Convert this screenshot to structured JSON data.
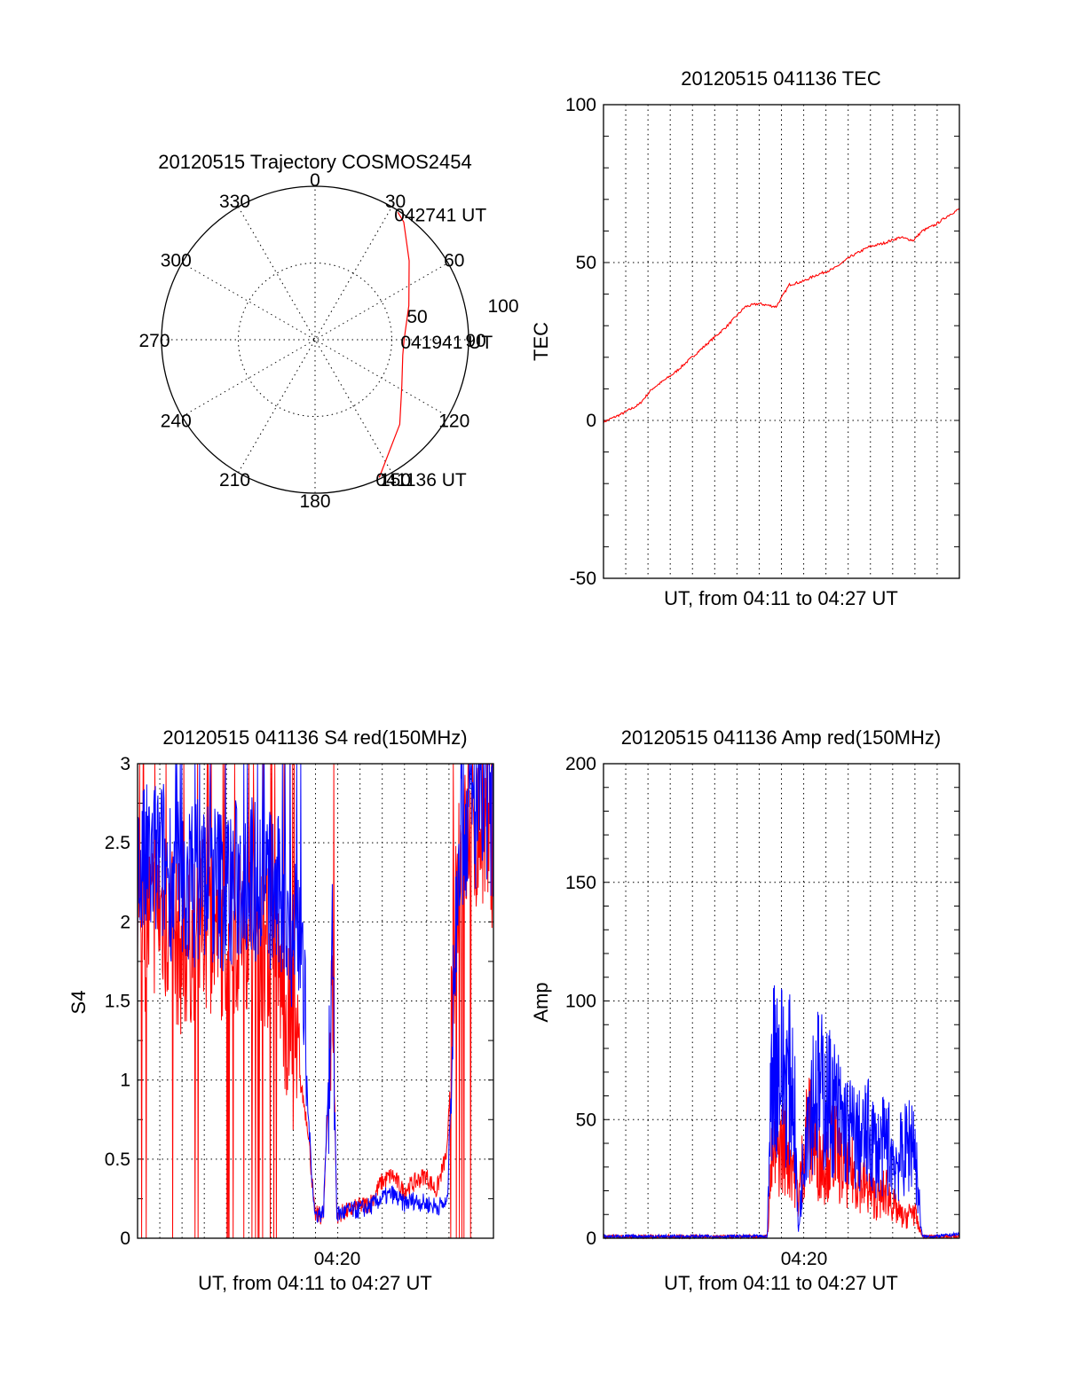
{
  "chart_data": [
    {
      "type": "polar",
      "title": "20120515 Trajectory COSMOS2454",
      "angle_labels": [
        "0",
        "30",
        "60",
        "90",
        "120",
        "150",
        "180",
        "210",
        "240",
        "270",
        "300",
        "330"
      ],
      "radius_labels": [
        "50",
        "100"
      ],
      "rlim": [
        0,
        100
      ],
      "grid": true,
      "series": [
        {
          "color": "#ff0000",
          "points": [
            {
              "az": 155,
              "r": 99
            },
            {
              "az": 135,
              "r": 78
            },
            {
              "az": 118,
              "r": 64
            },
            {
              "az": 100,
              "r": 58
            },
            {
              "az": 90,
              "r": 58
            },
            {
              "az": 70,
              "r": 65
            },
            {
              "az": 50,
              "r": 80
            },
            {
              "az": 37,
              "r": 96
            },
            {
              "az": 33,
              "r": 99
            }
          ]
        }
      ],
      "annotations": [
        {
          "text": "041136 UT",
          "az": 155,
          "r": 99
        },
        {
          "text": "041941 UT",
          "az": 90,
          "r": 58
        },
        {
          "text": "042741 UT",
          "az": 33,
          "r": 99
        }
      ]
    },
    {
      "type": "line",
      "title": "20120515 041136 TEC",
      "xlabel": "UT, from 04:11 to 04:27 UT",
      "ylabel": "TEC",
      "xlim": [
        0,
        16.08
      ],
      "ylim": [
        -50,
        100
      ],
      "yticks": [
        "-50",
        "0",
        "50",
        "100"
      ],
      "grid": true,
      "series": [
        {
          "color": "#ff0000",
          "x": [
            0,
            0.8,
            1.6,
            2.2,
            2.6,
            3.2,
            4.0,
            4.8,
            5.6,
            6.4,
            7.0,
            7.8,
            8.4,
            9.0,
            9.6,
            10.4,
            11.2,
            12.0,
            12.6,
            13.4,
            14.0,
            14.4,
            15.0,
            15.6,
            16.08
          ],
          "y": [
            -0.5,
            2,
            5,
            10,
            12,
            15,
            20,
            25,
            30,
            36,
            37,
            36,
            43,
            44,
            46,
            48,
            52,
            55,
            56,
            58,
            57,
            60,
            62,
            65,
            67
          ]
        }
      ]
    },
    {
      "type": "line",
      "title": "20120515 041136 S4 red(150MHz)",
      "xlabel": "UT, from 04:11 to 04:27 UT",
      "ylabel": "S4",
      "xlim": [
        0,
        16.08
      ],
      "ylim": [
        0,
        3
      ],
      "xticks": [
        "04:20"
      ],
      "yticks": [
        "0",
        "0.5",
        "1",
        "1.5",
        "2",
        "2.5",
        "3"
      ],
      "grid": true,
      "series": [
        {
          "color": "#ff0000",
          "x": [
            0,
            1.0,
            2.0,
            3.0,
            4.0,
            5.0,
            6.0,
            6.5,
            7.0,
            7.4,
            7.7,
            8.0,
            8.4,
            8.8,
            9.0,
            9.5,
            10.0,
            10.5,
            11.0,
            11.5,
            12.0,
            12.5,
            13.0,
            13.5,
            14.0,
            14.5,
            15.0,
            15.5,
            16.08
          ],
          "y": [
            1.9,
            2.1,
            1.8,
            2.0,
            1.9,
            2.0,
            1.8,
            1.6,
            1.2,
            0.95,
            0.7,
            0.15,
            0.14,
            1.6,
            0.15,
            0.17,
            0.2,
            0.22,
            0.35,
            0.4,
            0.3,
            0.35,
            0.4,
            0.3,
            0.55,
            2.4,
            2.5,
            2.6,
            2.5
          ]
        },
        {
          "color": "#0000ff",
          "x": [
            0,
            1.0,
            2.0,
            3.0,
            4.0,
            5.0,
            6.0,
            6.5,
            7.0,
            7.4,
            7.7,
            8.0,
            8.4,
            8.8,
            9.0,
            9.5,
            10.0,
            10.5,
            11.0,
            11.5,
            12.0,
            12.5,
            13.0,
            13.5,
            14.0,
            14.5,
            15.0,
            15.5,
            16.08
          ],
          "y": [
            2.3,
            2.4,
            2.2,
            2.3,
            2.2,
            2.3,
            2.2,
            2.1,
            2.0,
            1.9,
            0.8,
            0.15,
            0.16,
            1.7,
            0.15,
            0.17,
            0.18,
            0.2,
            0.25,
            0.28,
            0.22,
            0.24,
            0.22,
            0.2,
            0.22,
            2.6,
            2.7,
            2.7,
            2.6
          ]
        }
      ]
    },
    {
      "type": "line",
      "title": "20120515 041136 Amp red(150MHz)",
      "xlabel": "UT, from 04:11 to 04:27 UT",
      "ylabel": "Amp",
      "xlim": [
        0,
        16.08
      ],
      "ylim": [
        0,
        200
      ],
      "xticks": [
        "04:20"
      ],
      "yticks": [
        "0",
        "50",
        "100",
        "150",
        "200"
      ],
      "grid": true,
      "series": [
        {
          "color": "#ff0000",
          "x": [
            0,
            4.0,
            7.4,
            7.6,
            7.8,
            8.2,
            8.6,
            8.8,
            9.2,
            9.6,
            10.0,
            10.4,
            10.8,
            11.2,
            11.6,
            12.0,
            12.4,
            12.8,
            13.2,
            13.6,
            14.0,
            14.4,
            15.0,
            16.08
          ],
          "y": [
            0,
            0,
            0,
            40,
            45,
            50,
            40,
            20,
            60,
            45,
            40,
            50,
            35,
            35,
            30,
            25,
            20,
            25,
            15,
            10,
            15,
            0,
            0,
            0
          ]
        },
        {
          "color": "#0000ff",
          "x": [
            0,
            4.0,
            7.4,
            7.6,
            7.8,
            8.2,
            8.6,
            8.8,
            9.2,
            9.6,
            10.0,
            10.4,
            10.8,
            11.2,
            11.6,
            12.0,
            12.4,
            12.8,
            13.2,
            13.6,
            14.0,
            14.4,
            15.0,
            16.08
          ],
          "y": [
            0,
            0,
            0,
            90,
            95,
            85,
            80,
            2,
            70,
            80,
            75,
            70,
            60,
            55,
            50,
            55,
            45,
            50,
            40,
            45,
            55,
            0,
            0,
            1
          ]
        }
      ]
    }
  ]
}
